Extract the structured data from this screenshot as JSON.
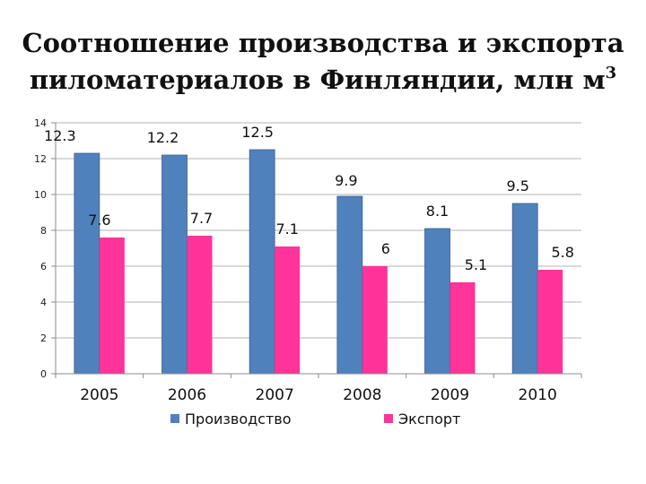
{
  "chart_data": {
    "type": "bar",
    "title_line1": "Соотношение производства и экспорта",
    "title_line2": "пиломатериалов в Финляндии, млн м",
    "title_sup": "3",
    "categories": [
      "2005",
      "2006",
      "2007",
      "2008",
      "2009",
      "2010"
    ],
    "series": [
      {
        "name": "Производство",
        "values": [
          12.3,
          12.2,
          12.5,
          9.9,
          8.1,
          9.5
        ],
        "color": "#4f81bd"
      },
      {
        "name": "Экспорт",
        "values": [
          7.6,
          7.7,
          7.1,
          6,
          5.1,
          5.8
        ],
        "color": "#ff3399"
      }
    ],
    "data_labels": [
      [
        "12.3",
        "12.2",
        "12.5",
        "9.9",
        "8.1",
        "9.5"
      ],
      [
        "7.6",
        "7.7",
        "7.1",
        "6",
        "5.1",
        "5.8"
      ]
    ],
    "ylim": [
      0,
      14
    ],
    "yticks": [
      "0",
      "2",
      "4",
      "6",
      "8",
      "10",
      "12",
      "14"
    ],
    "grid": true,
    "legend_position": "bottom"
  }
}
